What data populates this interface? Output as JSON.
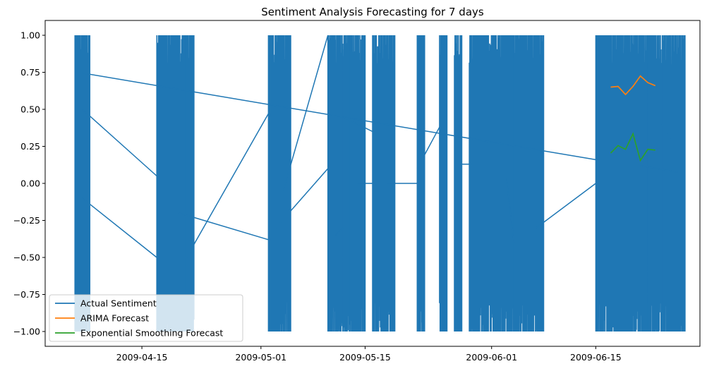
{
  "chart_data": {
    "type": "line",
    "title": "Sentiment Analysis Forecasting for 7 days",
    "xlabel": "",
    "ylabel": "",
    "x_axis": {
      "type": "date",
      "range": [
        "2009-04-02",
        "2009-06-29"
      ],
      "ticks": [
        "2009-04-15",
        "2009-05-01",
        "2009-05-15",
        "2009-06-01",
        "2009-06-15"
      ]
    },
    "y_axis": {
      "range": [
        -1.1,
        1.1
      ],
      "ticks": [
        1.0,
        0.75,
        0.5,
        0.25,
        0.0,
        -0.25,
        -0.5,
        -0.75,
        -1.0
      ],
      "tick_labels": [
        "1.00",
        "0.75",
        "0.50",
        "0.25",
        "0.00",
        "−0.25",
        "−0.50",
        "−0.75",
        "−1.00"
      ]
    },
    "grid": false,
    "legend": {
      "position": "lower-left"
    },
    "series": [
      {
        "name": "Actual Sentiment",
        "color": "#1f77b4",
        "style": "dense oscillation between -1 and 1 within activity bands, long connecting segments across gaps",
        "activity_bands": [
          [
            "2009-04-06",
            "2009-04-07"
          ],
          [
            "2009-04-17",
            "2009-04-20"
          ],
          [
            "2009-04-21",
            "2009-04-21"
          ],
          [
            "2009-05-02",
            "2009-05-04"
          ],
          [
            "2009-05-10",
            "2009-05-11"
          ],
          [
            "2009-05-12",
            "2009-05-12"
          ],
          [
            "2009-05-13",
            "2009-05-14"
          ],
          [
            "2009-05-16",
            "2009-05-18"
          ],
          [
            "2009-05-22",
            "2009-05-22"
          ],
          [
            "2009-05-25",
            "2009-05-25"
          ],
          [
            "2009-05-27",
            "2009-05-27"
          ],
          [
            "2009-05-29",
            "2009-06-03"
          ],
          [
            "2009-06-04",
            "2009-06-07"
          ],
          [
            "2009-06-15",
            "2009-06-21"
          ],
          [
            "2009-06-22",
            "2009-06-23"
          ],
          [
            "2009-06-24",
            "2009-06-26"
          ]
        ],
        "points": [
          [
            "2009-04-07",
            0.745
          ],
          [
            "2009-06-15",
            0.16
          ],
          [
            "2009-04-07",
            0.5
          ],
          [
            "2009-04-17",
            0.05
          ],
          [
            "2009-04-07",
            -0.1
          ],
          [
            "2009-04-17",
            -0.5
          ],
          [
            "2009-04-20",
            -0.2
          ],
          [
            "2009-05-02",
            -0.38
          ],
          [
            "2009-04-21",
            -0.5
          ],
          [
            "2009-05-02",
            0.47
          ],
          [
            "2009-05-03",
            -0.3
          ],
          [
            "2009-05-10",
            0.1
          ],
          [
            "2009-05-04",
            -0.05
          ],
          [
            "2009-05-10",
            1.0
          ],
          [
            "2009-05-11",
            -0.35
          ],
          [
            "2009-05-12",
            -0.3
          ],
          [
            "2009-05-12",
            0.45
          ],
          [
            "2009-05-16",
            0.35
          ],
          [
            "2009-05-14",
            0.0
          ],
          [
            "2009-05-16",
            0.0
          ],
          [
            "2009-05-18",
            0.0
          ],
          [
            "2009-05-22",
            0.0
          ],
          [
            "2009-05-22",
            0.1
          ],
          [
            "2009-05-25",
            0.38
          ],
          [
            "2009-05-27",
            0.13
          ],
          [
            "2009-05-29",
            0.13
          ],
          [
            "2009-06-03",
            0.03
          ],
          [
            "2009-06-04",
            -0.4
          ],
          [
            "2009-06-07",
            -0.3
          ],
          [
            "2009-06-15",
            0.0
          ],
          [
            "2009-06-23",
            0.48
          ],
          [
            "2009-06-25",
            0.3
          ],
          [
            "2009-06-21",
            0.12
          ],
          [
            "2009-06-26",
            0.075
          ]
        ]
      },
      {
        "name": "ARIMA Forecast",
        "color": "#ff7f0e",
        "x": [
          "2009-06-17",
          "2009-06-18",
          "2009-06-19",
          "2009-06-20",
          "2009-06-21",
          "2009-06-22",
          "2009-06-23"
        ],
        "values": [
          0.65,
          0.655,
          0.6,
          0.655,
          0.725,
          0.68,
          0.66
        ]
      },
      {
        "name": "Exponential Smoothing Forecast",
        "color": "#2ca02c",
        "x": [
          "2009-06-17",
          "2009-06-18",
          "2009-06-19",
          "2009-06-20",
          "2009-06-21",
          "2009-06-22",
          "2009-06-23"
        ],
        "values": [
          0.205,
          0.255,
          0.23,
          0.335,
          0.155,
          0.23,
          0.225
        ]
      }
    ]
  }
}
